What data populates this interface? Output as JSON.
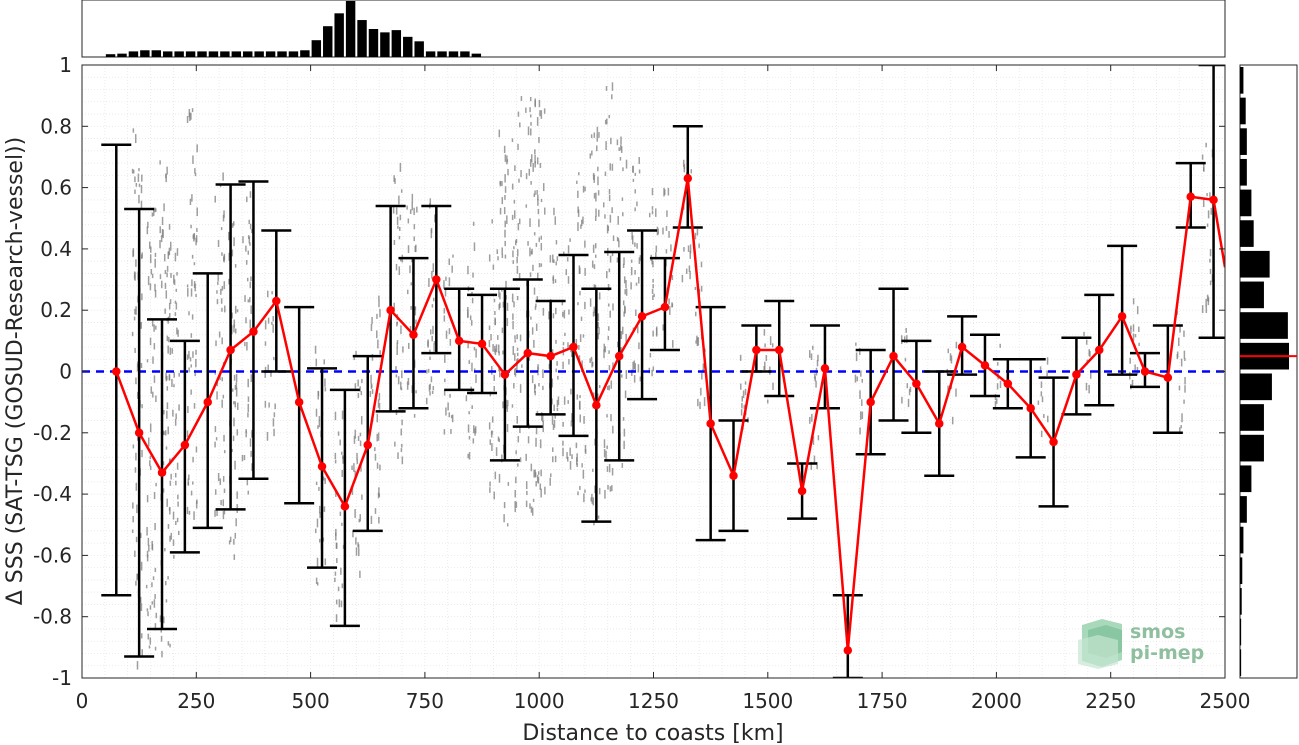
{
  "chart_data": {
    "type": "line",
    "title": "",
    "xlabel": "Distance to coasts [km]",
    "ylabel": "Δ SSS (SAT-TSG (GOSUD-Research-vessel))",
    "xlim": [
      0,
      2500
    ],
    "ylim": [
      -1,
      1
    ],
    "x_ticks": [
      0,
      250,
      500,
      750,
      1000,
      1250,
      1500,
      1750,
      2000,
      2250,
      2500
    ],
    "y_ticks": [
      1,
      0.8,
      0.6,
      0.4,
      0.2,
      0,
      -0.2,
      -0.4,
      -0.6,
      -0.8,
      -1
    ],
    "x_tick_labels": [
      "0",
      "250",
      "500",
      "750",
      "1000",
      "1250",
      "1500",
      "1750",
      "2000",
      "2250",
      "2500"
    ],
    "y_tick_labels": [
      "1",
      "0.8",
      "0.6",
      "0.4",
      "0.2",
      "0",
      "-0.2",
      "-0.4",
      "-0.6",
      "-0.8",
      "-1"
    ],
    "grid": true,
    "zero_line": {
      "y": 0,
      "style": "dashed",
      "color": "#0000ff"
    },
    "mean_series": {
      "color": "#ff0000",
      "points": [
        {
          "x": 75,
          "y": 0.0,
          "lo": -0.73,
          "hi": 0.74
        },
        {
          "x": 125,
          "y": -0.2,
          "lo": -0.93,
          "hi": 0.53
        },
        {
          "x": 175,
          "y": -0.33,
          "lo": -0.84,
          "hi": 0.17
        },
        {
          "x": 225,
          "y": -0.24,
          "lo": -0.59,
          "hi": 0.1
        },
        {
          "x": 275,
          "y": -0.1,
          "lo": -0.51,
          "hi": 0.32
        },
        {
          "x": 325,
          "y": 0.07,
          "lo": -0.45,
          "hi": 0.61
        },
        {
          "x": 375,
          "y": 0.13,
          "lo": -0.35,
          "hi": 0.62
        },
        {
          "x": 425,
          "y": 0.23,
          "lo": 0.0,
          "hi": 0.46
        },
        {
          "x": 475,
          "y": -0.1,
          "lo": -0.43,
          "hi": 0.21
        },
        {
          "x": 525,
          "y": -0.31,
          "lo": -0.64,
          "hi": 0.01
        },
        {
          "x": 575,
          "y": -0.44,
          "lo": -0.83,
          "hi": -0.06
        },
        {
          "x": 625,
          "y": -0.24,
          "lo": -0.52,
          "hi": 0.05
        },
        {
          "x": 675,
          "y": 0.2,
          "lo": -0.13,
          "hi": 0.54
        },
        {
          "x": 725,
          "y": 0.12,
          "lo": -0.12,
          "hi": 0.37
        },
        {
          "x": 775,
          "y": 0.3,
          "lo": 0.06,
          "hi": 0.54
        },
        {
          "x": 825,
          "y": 0.1,
          "lo": -0.06,
          "hi": 0.27
        },
        {
          "x": 875,
          "y": 0.09,
          "lo": -0.07,
          "hi": 0.25
        },
        {
          "x": 925,
          "y": -0.01,
          "lo": -0.29,
          "hi": 0.27
        },
        {
          "x": 975,
          "y": 0.06,
          "lo": -0.18,
          "hi": 0.3
        },
        {
          "x": 1025,
          "y": 0.05,
          "lo": -0.14,
          "hi": 0.23
        },
        {
          "x": 1075,
          "y": 0.08,
          "lo": -0.21,
          "hi": 0.38
        },
        {
          "x": 1125,
          "y": -0.11,
          "lo": -0.49,
          "hi": 0.27
        },
        {
          "x": 1175,
          "y": 0.05,
          "lo": -0.29,
          "hi": 0.39
        },
        {
          "x": 1225,
          "y": 0.18,
          "lo": -0.09,
          "hi": 0.46
        },
        {
          "x": 1275,
          "y": 0.21,
          "lo": 0.07,
          "hi": 0.37
        },
        {
          "x": 1325,
          "y": 0.63,
          "lo": 0.47,
          "hi": 0.8
        },
        {
          "x": 1375,
          "y": -0.17,
          "lo": -0.55,
          "hi": 0.21
        },
        {
          "x": 1425,
          "y": -0.34,
          "lo": -0.52,
          "hi": -0.16
        },
        {
          "x": 1475,
          "y": 0.07,
          "lo": 0.0,
          "hi": 0.15
        },
        {
          "x": 1525,
          "y": 0.07,
          "lo": -0.08,
          "hi": 0.23
        },
        {
          "x": 1575,
          "y": -0.39,
          "lo": -0.48,
          "hi": -0.3
        },
        {
          "x": 1625,
          "y": 0.01,
          "lo": -0.12,
          "hi": 0.15
        },
        {
          "x": 1675,
          "y": -0.91,
          "lo": -1.0,
          "hi": -0.73
        },
        {
          "x": 1725,
          "y": -0.1,
          "lo": -0.27,
          "hi": 0.07
        },
        {
          "x": 1775,
          "y": 0.05,
          "lo": -0.16,
          "hi": 0.27
        },
        {
          "x": 1825,
          "y": -0.04,
          "lo": -0.2,
          "hi": 0.1
        },
        {
          "x": 1875,
          "y": -0.17,
          "lo": -0.34,
          "hi": 0.0
        },
        {
          "x": 1925,
          "y": 0.08,
          "lo": -0.01,
          "hi": 0.18
        },
        {
          "x": 1975,
          "y": 0.02,
          "lo": -0.08,
          "hi": 0.12
        },
        {
          "x": 2025,
          "y": -0.04,
          "lo": -0.12,
          "hi": 0.04
        },
        {
          "x": 2075,
          "y": -0.12,
          "lo": -0.28,
          "hi": 0.04
        },
        {
          "x": 2125,
          "y": -0.23,
          "lo": -0.44,
          "hi": -0.02
        },
        {
          "x": 2175,
          "y": -0.01,
          "lo": -0.14,
          "hi": 0.11
        },
        {
          "x": 2225,
          "y": 0.07,
          "lo": -0.11,
          "hi": 0.25
        },
        {
          "x": 2275,
          "y": 0.18,
          "lo": -0.01,
          "hi": 0.41
        },
        {
          "x": 2325,
          "y": 0.0,
          "lo": -0.05,
          "hi": 0.06
        },
        {
          "x": 2375,
          "y": -0.02,
          "lo": -0.2,
          "hi": 0.15
        },
        {
          "x": 2425,
          "y": 0.57,
          "lo": 0.47,
          "hi": 0.68
        },
        {
          "x": 2475,
          "y": 0.56,
          "lo": 0.11,
          "hi": 1.0
        },
        {
          "x": 2500,
          "y": 0.34
        }
      ]
    },
    "top_histogram": {
      "bin_width": 25,
      "values": [
        0,
        0,
        0.05,
        0.06,
        0.1,
        0.12,
        0.12,
        0.1,
        0.1,
        0.1,
        0.1,
        0.1,
        0.1,
        0.1,
        0.1,
        0.1,
        0.1,
        0.1,
        0.1,
        0.12,
        0.3,
        0.55,
        0.78,
        1.0,
        0.66,
        0.5,
        0.44,
        0.48,
        0.36,
        0.28,
        0.1,
        0.1,
        0.1,
        0.1,
        0.06,
        0,
        0,
        0,
        0,
        0,
        0,
        0,
        0,
        0,
        0,
        0,
        0,
        0,
        0,
        0,
        0,
        0,
        0,
        0,
        0,
        0,
        0,
        0,
        0,
        0,
        0,
        0,
        0,
        0,
        0,
        0,
        0,
        0,
        0,
        0,
        0,
        0,
        0,
        0,
        0,
        0,
        0,
        0,
        0,
        0,
        0,
        0,
        0,
        0,
        0,
        0,
        0,
        0,
        0,
        0,
        0,
        0,
        0,
        0,
        0,
        0,
        0,
        0,
        0,
        0,
        0
      ]
    },
    "right_histogram": {
      "bin_width": 0.1,
      "bins_top_to_bottom": [
        0.06,
        0.1,
        0.12,
        0.12,
        0.2,
        0.24,
        0.52,
        0.42,
        0.84,
        0.86,
        0.56,
        0.42,
        0.42,
        0.2,
        0.12,
        0.06,
        0.04,
        0.03,
        0.02,
        0.02
      ],
      "mean_marker": 0.05,
      "mean_marker_color": "#ff0000"
    },
    "scatter_color": "#7f7f7f",
    "scatter_columns": [
      {
        "x": 120,
        "lo": -0.95,
        "hi": 0.8
      },
      {
        "x": 150,
        "lo": -0.9,
        "hi": 0.6
      },
      {
        "x": 180,
        "lo": -0.95,
        "hi": 0.7
      },
      {
        "x": 200,
        "lo": -0.6,
        "hi": 0.5
      },
      {
        "x": 240,
        "lo": -0.5,
        "hi": 0.9
      },
      {
        "x": 300,
        "lo": -0.5,
        "hi": 0.7
      },
      {
        "x": 330,
        "lo": -0.6,
        "hi": 0.5
      },
      {
        "x": 360,
        "lo": -0.4,
        "hi": 0.6
      },
      {
        "x": 410,
        "lo": -0.2,
        "hi": 0.3
      },
      {
        "x": 520,
        "lo": -0.7,
        "hi": 0.1
      },
      {
        "x": 560,
        "lo": -0.8,
        "hi": -0.1
      },
      {
        "x": 600,
        "lo": -0.7,
        "hi": 0.1
      },
      {
        "x": 640,
        "lo": -0.5,
        "hi": 0.3
      },
      {
        "x": 690,
        "lo": -0.3,
        "hi": 0.7
      },
      {
        "x": 720,
        "lo": -0.2,
        "hi": 0.6
      },
      {
        "x": 760,
        "lo": -0.1,
        "hi": 0.6
      },
      {
        "x": 800,
        "lo": -0.2,
        "hi": 0.4
      },
      {
        "x": 850,
        "lo": -0.3,
        "hi": 0.5
      },
      {
        "x": 900,
        "lo": -0.4,
        "hi": 0.5
      },
      {
        "x": 920,
        "lo": -0.5,
        "hi": 0.8
      },
      {
        "x": 950,
        "lo": -0.5,
        "hi": 0.9
      },
      {
        "x": 980,
        "lo": -0.45,
        "hi": 0.95
      },
      {
        "x": 1000,
        "lo": -0.4,
        "hi": 0.9
      },
      {
        "x": 1030,
        "lo": -0.35,
        "hi": 0.6
      },
      {
        "x": 1060,
        "lo": -0.3,
        "hi": 0.5
      },
      {
        "x": 1090,
        "lo": -0.4,
        "hi": 0.7
      },
      {
        "x": 1120,
        "lo": -0.5,
        "hi": 0.8
      },
      {
        "x": 1150,
        "lo": -0.4,
        "hi": 0.95
      },
      {
        "x": 1180,
        "lo": -0.3,
        "hi": 0.8
      },
      {
        "x": 1210,
        "lo": -0.1,
        "hi": 0.7
      },
      {
        "x": 1250,
        "lo": 0.0,
        "hi": 0.6
      },
      {
        "x": 1280,
        "lo": 0.1,
        "hi": 0.6
      },
      {
        "x": 1320,
        "lo": 0.3,
        "hi": 0.7
      },
      {
        "x": 1350,
        "lo": -0.1,
        "hi": 0.5
      },
      {
        "x": 1450,
        "lo": -0.2,
        "hi": 0.1
      },
      {
        "x": 1500,
        "lo": -0.1,
        "hi": 0.15
      },
      {
        "x": 1600,
        "lo": -0.3,
        "hi": 0.1
      },
      {
        "x": 1700,
        "lo": -0.2,
        "hi": 0.1
      },
      {
        "x": 1800,
        "lo": -0.1,
        "hi": 0.15
      },
      {
        "x": 1900,
        "lo": -0.15,
        "hi": 0.1
      },
      {
        "x": 2000,
        "lo": -0.1,
        "hi": 0.1
      },
      {
        "x": 2100,
        "lo": -0.2,
        "hi": 0.05
      },
      {
        "x": 2200,
        "lo": -0.05,
        "hi": 0.15
      },
      {
        "x": 2300,
        "lo": -0.1,
        "hi": 0.3
      },
      {
        "x": 2400,
        "lo": -0.2,
        "hi": 0.2
      },
      {
        "x": 2460,
        "lo": 0.2,
        "hi": 0.75
      }
    ]
  },
  "logo": {
    "line1": "smos",
    "line2": "pi-mep"
  }
}
